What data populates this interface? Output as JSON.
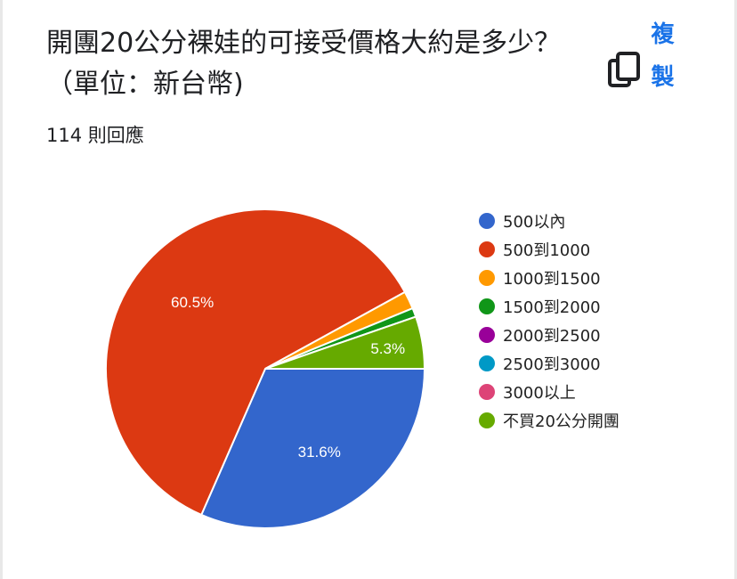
{
  "header": {
    "title": "開團20公分裸娃的可接受價格大約是多少？（單位：新台幣)",
    "responses": "114 則回應",
    "copy_label": "複製",
    "copy_icon": "copy-icon"
  },
  "chart_data": {
    "type": "pie",
    "title": "開團20公分裸娃的可接受價格大約是多少？（單位：新台幣)",
    "legend_position": "right",
    "total_responses": 114,
    "slices": [
      {
        "label": "500以內",
        "value": 31.6,
        "color": "#3366cc",
        "display": "31.6%"
      },
      {
        "label": "500到1000",
        "value": 60.5,
        "color": "#dc3912",
        "display": "60.5%"
      },
      {
        "label": "1000到1500",
        "value": 1.8,
        "color": "#ff9900",
        "display": ""
      },
      {
        "label": "1500到2000",
        "value": 0.9,
        "color": "#109618",
        "display": ""
      },
      {
        "label": "2000到2500",
        "value": 0,
        "color": "#990099",
        "display": ""
      },
      {
        "label": "2500到3000",
        "value": 0,
        "color": "#0099c6",
        "display": ""
      },
      {
        "label": "3000以上",
        "value": 0,
        "color": "#dd4477",
        "display": ""
      },
      {
        "label": "不買20公分開團",
        "value": 5.3,
        "color": "#66aa00",
        "display": "5.3%"
      }
    ]
  }
}
